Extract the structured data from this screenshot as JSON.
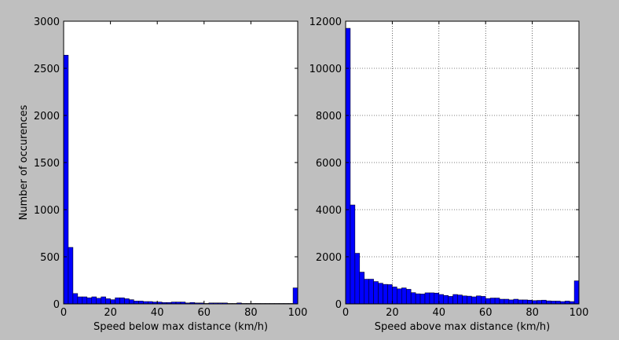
{
  "chart_data": [
    {
      "type": "bar",
      "title": "",
      "xlabel": "Speed below max distance (km/h)",
      "ylabel": "Number of occurences",
      "xlim": [
        0,
        100
      ],
      "ylim": [
        0,
        3000
      ],
      "xticks": [
        0,
        20,
        40,
        60,
        80,
        100
      ],
      "yticks": [
        0,
        500,
        1000,
        1500,
        2000,
        2500,
        3000
      ],
      "grid": false,
      "bar_color": "#0000ff",
      "bin_width": 2,
      "values": [
        2640,
        600,
        110,
        75,
        75,
        65,
        75,
        60,
        75,
        55,
        45,
        65,
        65,
        55,
        45,
        30,
        30,
        25,
        25,
        20,
        20,
        15,
        15,
        20,
        20,
        20,
        10,
        15,
        10,
        10,
        5,
        10,
        10,
        10,
        10,
        5,
        5,
        10,
        5,
        5,
        5,
        5,
        5,
        5,
        5,
        5,
        5,
        5,
        5,
        170
      ]
    },
    {
      "type": "bar",
      "title": "",
      "xlabel": "Speed above max distance (km/h)",
      "ylabel": "",
      "xlim": [
        0,
        100
      ],
      "ylim": [
        0,
        12000
      ],
      "xticks": [
        0,
        20,
        40,
        60,
        80,
        100
      ],
      "yticks": [
        0,
        2000,
        4000,
        6000,
        8000,
        10000,
        12000
      ],
      "grid": true,
      "bar_color": "#0000ff",
      "bin_width": 2,
      "values": [
        11700,
        4200,
        2150,
        1350,
        1050,
        1050,
        950,
        880,
        830,
        820,
        720,
        640,
        680,
        620,
        480,
        430,
        420,
        470,
        470,
        460,
        400,
        360,
        320,
        400,
        380,
        340,
        330,
        300,
        340,
        320,
        230,
        250,
        250,
        200,
        200,
        170,
        200,
        170,
        170,
        160,
        140,
        150,
        160,
        130,
        120,
        120,
        100,
        120,
        100,
        980
      ]
    }
  ]
}
